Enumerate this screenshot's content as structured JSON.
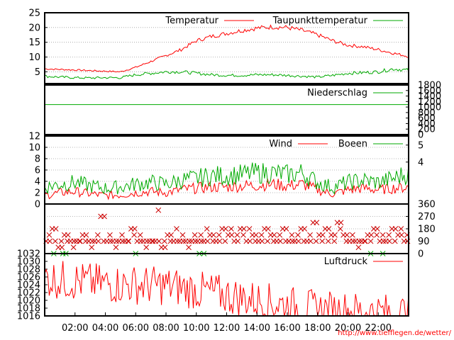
{
  "chart_data": [
    {
      "type": "line",
      "panel": "temperature",
      "ylim": [
        1,
        25
      ],
      "yticks": [
        "25",
        "20",
        "15",
        "10",
        "5"
      ],
      "ytick_values": [
        25,
        20,
        15,
        10,
        5
      ],
      "grid": true,
      "legend_placement": "top",
      "x": [
        0,
        1,
        2,
        3,
        4,
        5,
        6,
        7,
        8,
        9,
        10,
        11,
        12,
        13,
        14,
        15,
        16,
        17,
        18,
        19,
        20,
        21,
        22,
        23,
        24
      ],
      "series": [
        {
          "name": "Temperatur",
          "color": "#ff0000",
          "values": [
            6.0,
            5.8,
            5.6,
            5.4,
            5.2,
            5.0,
            6.5,
            8.5,
            10.5,
            12.5,
            15.5,
            17.0,
            18.0,
            19.0,
            19.8,
            20.2,
            20.0,
            19.0,
            17.5,
            15.5,
            14.0,
            13.5,
            12.5,
            11.3,
            10.2
          ]
        },
        {
          "name": "Taupunkttemperatur",
          "color": "#00aa00",
          "values": [
            3.5,
            3.2,
            3.0,
            2.9,
            3.0,
            3.0,
            4.0,
            4.5,
            5.0,
            5.0,
            4.5,
            4.0,
            3.8,
            3.8,
            4.0,
            4.0,
            3.8,
            3.5,
            3.2,
            3.8,
            4.5,
            4.7,
            5.0,
            6.0,
            5.5
          ]
        }
      ]
    },
    {
      "type": "line",
      "panel": "precipitation",
      "ylim": [
        0,
        1800
      ],
      "yticks_right": [
        "1800",
        "1600",
        "1400",
        "1200",
        "1000",
        "800",
        "600",
        "400",
        "200",
        "0"
      ],
      "ytick_values": [
        1800,
        1600,
        1400,
        1200,
        1000,
        800,
        600,
        400,
        200,
        0
      ],
      "legend_placement": "top-right",
      "x": [
        0,
        24
      ],
      "series": [
        {
          "name": "Niederschlag",
          "color": "#00aa00",
          "values": [
            1090,
            1090
          ]
        }
      ]
    },
    {
      "type": "line",
      "panel": "wind",
      "ylim": [
        0,
        12
      ],
      "yticks": [
        "12",
        "10",
        "8",
        "6",
        "4",
        "2",
        "0"
      ],
      "ytick_values": [
        12,
        10,
        8,
        6,
        4,
        2,
        0
      ],
      "yticks_right": [
        "5",
        "4"
      ],
      "ytick_right_values": [
        10.4,
        7.4
      ],
      "grid": true,
      "legend_placement": "top-right",
      "x": [
        0,
        1,
        2,
        3,
        4,
        5,
        6,
        7,
        8,
        9,
        10,
        11,
        12,
        13,
        14,
        15,
        16,
        17,
        18,
        19,
        20,
        21,
        22,
        23,
        24
      ],
      "series": [
        {
          "name": "Wind",
          "color": "#ff0000",
          "values": [
            1.5,
            2.0,
            2.2,
            1.8,
            1.5,
            1.6,
            2.0,
            2.2,
            2.0,
            2.5,
            2.8,
            3.0,
            3.0,
            3.2,
            3.3,
            3.5,
            3.2,
            3.5,
            2.5,
            1.8,
            2.5,
            2.8,
            2.5,
            2.8,
            3.0
          ]
        },
        {
          "name": "Boeen",
          "color": "#00aa00",
          "values": [
            3.0,
            3.5,
            3.8,
            3.2,
            2.8,
            3.0,
            3.5,
            3.8,
            3.5,
            4.2,
            4.5,
            5.0,
            5.0,
            5.2,
            5.5,
            5.5,
            5.2,
            5.5,
            3.8,
            3.0,
            3.8,
            4.2,
            3.8,
            4.5,
            5.5
          ]
        }
      ]
    },
    {
      "type": "scatter",
      "panel": "wind-direction",
      "ylim": [
        0,
        360
      ],
      "yticks_right": [
        "360",
        "270",
        "180",
        "90",
        "0"
      ],
      "ytick_values": [
        360,
        270,
        180,
        90,
        0
      ],
      "grid": true,
      "x": [
        0.1,
        0.3,
        0.5,
        0.7,
        0.9,
        1.1,
        1.3,
        1.5,
        1.7,
        1.9,
        2.1,
        2.3,
        2.5,
        2.7,
        2.9,
        3.1,
        3.3,
        3.5,
        3.7,
        3.9,
        4.1,
        4.3,
        4.5,
        4.7,
        4.9,
        5.1,
        5.3,
        5.5,
        5.7,
        5.9,
        6.1,
        6.3,
        6.5,
        6.7,
        6.9,
        7.1,
        7.3,
        7.5,
        7.7,
        7.9,
        8.1,
        8.3,
        8.5,
        8.7,
        8.9,
        9.1,
        9.3,
        9.5,
        9.7,
        9.9,
        10.1,
        10.3,
        10.5,
        10.7,
        10.9,
        11.1,
        11.3,
        11.5,
        11.7,
        11.9,
        12.1,
        12.3,
        12.5,
        12.7,
        12.9,
        13.1,
        13.3,
        13.5,
        13.7,
        13.9,
        14.1,
        14.3,
        14.5,
        14.7,
        14.9,
        15.1,
        15.3,
        15.5,
        15.7,
        15.9,
        16.1,
        16.3,
        16.5,
        16.7,
        16.9,
        17.1,
        17.3,
        17.5,
        17.7,
        17.9,
        18.1,
        18.3,
        18.5,
        18.7,
        18.9,
        19.1,
        19.3,
        19.5,
        19.7,
        19.9,
        20.1,
        20.3,
        20.5,
        20.7,
        20.9,
        21.1,
        21.3,
        21.5,
        21.7,
        21.9,
        22.1,
        22.3,
        22.5,
        22.7,
        22.9,
        23.1,
        23.3,
        23.5,
        23.7,
        23.9
      ],
      "series": [
        {
          "name": "",
          "color": "#cc0000",
          "values": [
            90,
            135,
            180,
            90,
            45,
            90,
            135,
            90,
            90,
            45,
            90,
            90,
            135,
            90,
            90,
            45,
            90,
            135,
            270,
            90,
            90,
            135,
            90,
            45,
            90,
            135,
            90,
            90,
            180,
            135,
            90,
            135,
            90,
            45,
            90,
            90,
            90,
            315,
            45,
            90,
            135,
            90,
            90,
            180,
            90,
            135,
            90,
            45,
            90,
            135,
            90,
            135,
            90,
            180,
            135,
            90,
            90,
            135,
            180,
            90,
            135,
            180,
            90,
            135,
            180,
            135,
            90,
            180,
            135,
            90,
            90,
            135,
            180,
            90,
            135,
            90,
            90,
            135,
            180,
            90,
            90,
            135,
            90,
            135,
            180,
            90,
            90,
            135,
            225,
            90,
            135,
            90,
            180,
            90,
            135,
            90,
            225,
            180,
            135,
            90,
            90,
            135,
            90,
            45,
            90,
            90,
            135,
            90,
            180,
            135,
            90,
            135,
            90,
            135,
            180,
            90,
            135,
            180,
            90,
            135
          ]
        },
        {
          "name": "",
          "color": "#00aa00",
          "values": [
            0,
            0,
            0,
            0,
            0,
            0,
            0,
            0
          ]
        }
      ],
      "series_x": [
        [],
        [
          0.6,
          1.2,
          1.4,
          6.0,
          10.2,
          10.5,
          21.5,
          22.3
        ]
      ]
    },
    {
      "type": "line",
      "panel": "pressure",
      "ylim": [
        1016,
        1032
      ],
      "yticks": [
        "1032",
        "1030",
        "1028",
        "1026",
        "1024",
        "1022",
        "1020",
        "1018",
        "1016"
      ],
      "ytick_values": [
        1032,
        1030,
        1028,
        1026,
        1024,
        1022,
        1020,
        1018,
        1016
      ],
      "legend_placement": "top-right",
      "x": [
        0,
        1,
        2,
        3,
        4,
        5,
        6,
        7,
        8,
        9,
        10,
        11,
        12,
        13,
        14,
        15,
        16,
        17,
        18,
        19,
        20,
        21,
        22,
        23,
        24
      ],
      "series": [
        {
          "name": "Luftdruck",
          "color": "#ff0000",
          "values": [
            1025.8,
            1025.3,
            1025.0,
            1024.6,
            1024.3,
            1024.1,
            1024.0,
            1023.9,
            1023.7,
            1023.2,
            1022.6,
            1022.0,
            1021.3,
            1020.6,
            1020.0,
            1019.3,
            1018.8,
            1018.1,
            1017.6,
            1017.4,
            1017.3,
            1017.1,
            1016.9,
            1016.7,
            1016.6
          ]
        }
      ]
    }
  ],
  "xaxis": {
    "xlim": [
      0,
      24
    ],
    "tick_labels": [
      "02:00",
      "04:00",
      "06:00",
      "08:00",
      "10:00",
      "12:00",
      "14:00",
      "16:00",
      "18:00",
      "20:00",
      "22:00"
    ],
    "tick_values": [
      2,
      4,
      6,
      8,
      10,
      12,
      14,
      16,
      18,
      20,
      22
    ]
  },
  "footer": {
    "url": "http://www.tiefflegen.de/wetter/",
    "url_color": "#ff0000"
  },
  "colors": {
    "temperature": "#ff0000",
    "dewpoint": "#00aa00",
    "grid": "#a0a0a0",
    "frame": "#000000"
  }
}
